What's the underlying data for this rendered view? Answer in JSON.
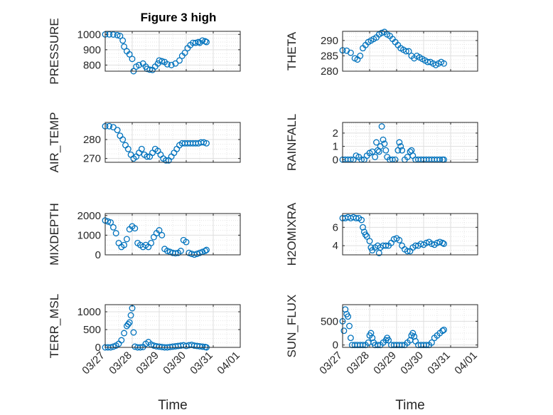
{
  "colors": {
    "marker": "#0072BD",
    "axis": "#262626",
    "grid": "#DFDFDF"
  },
  "chart_data": [
    {
      "type": "scatter",
      "title": "Figure 3 high",
      "ylabel": "PRESSURE",
      "ylim": [
        760,
        1020
      ],
      "yticks": [
        800,
        900,
        1000
      ],
      "grid": true,
      "points": [
        [
          0,
          1000
        ],
        [
          0.15,
          1000
        ],
        [
          0.3,
          999
        ],
        [
          0.45,
          995
        ],
        [
          0.55,
          990
        ],
        [
          0.65,
          960
        ],
        [
          0.7,
          920
        ],
        [
          0.8,
          890
        ],
        [
          0.9,
          870
        ],
        [
          1.0,
          840
        ],
        [
          1.05,
          760
        ],
        [
          1.15,
          790
        ],
        [
          1.25,
          800
        ],
        [
          1.4,
          810
        ],
        [
          1.5,
          790
        ],
        [
          1.55,
          775
        ],
        [
          1.65,
          770
        ],
        [
          1.75,
          768
        ],
        [
          1.85,
          790
        ],
        [
          1.95,
          810
        ],
        [
          2.0,
          830
        ],
        [
          2.1,
          825
        ],
        [
          2.2,
          820
        ],
        [
          2.3,
          805
        ],
        [
          2.45,
          800
        ],
        [
          2.6,
          810
        ],
        [
          2.75,
          830
        ],
        [
          2.85,
          860
        ],
        [
          2.95,
          880
        ],
        [
          3.05,
          910
        ],
        [
          3.15,
          930
        ],
        [
          3.25,
          945
        ],
        [
          3.35,
          945
        ],
        [
          3.45,
          950
        ],
        [
          3.5,
          945
        ],
        [
          3.6,
          960
        ],
        [
          3.7,
          955
        ],
        [
          3.75,
          950
        ]
      ]
    },
    {
      "type": "scatter",
      "ylabel": "THETA",
      "ylim": [
        280,
        293
      ],
      "yticks": [
        280,
        285,
        290
      ],
      "grid": true,
      "points": [
        [
          0,
          286.8
        ],
        [
          0.15,
          286.7
        ],
        [
          0.3,
          286
        ],
        [
          0.45,
          284.2
        ],
        [
          0.55,
          283.8
        ],
        [
          0.65,
          285
        ],
        [
          0.75,
          287.5
        ],
        [
          0.85,
          288.5
        ],
        [
          0.95,
          289.5
        ],
        [
          1.05,
          290
        ],
        [
          1.15,
          290.5
        ],
        [
          1.25,
          291
        ],
        [
          1.35,
          292
        ],
        [
          1.45,
          292.5
        ],
        [
          1.55,
          292.8
        ],
        [
          1.65,
          292
        ],
        [
          1.75,
          291.5
        ],
        [
          1.85,
          290.5
        ],
        [
          1.95,
          289.5
        ],
        [
          2.05,
          288.5
        ],
        [
          2.15,
          287.5
        ],
        [
          2.25,
          287
        ],
        [
          2.35,
          286.5
        ],
        [
          2.45,
          286.5
        ],
        [
          2.55,
          285
        ],
        [
          2.65,
          284.2
        ],
        [
          2.75,
          285
        ],
        [
          2.85,
          284.5
        ],
        [
          2.95,
          284
        ],
        [
          3.05,
          283.5
        ],
        [
          3.15,
          283
        ],
        [
          3.25,
          283
        ],
        [
          3.35,
          282.5
        ],
        [
          3.45,
          282
        ],
        [
          3.55,
          282.5
        ],
        [
          3.65,
          283
        ],
        [
          3.75,
          282.5
        ]
      ]
    },
    {
      "type": "scatter",
      "ylabel": "AIR_TEMP",
      "ylim": [
        268,
        289
      ],
      "yticks": [
        270,
        280
      ],
      "grid": true,
      "points": [
        [
          0,
          287
        ],
        [
          0.15,
          287
        ],
        [
          0.3,
          286.5
        ],
        [
          0.45,
          285
        ],
        [
          0.55,
          282
        ],
        [
          0.65,
          280
        ],
        [
          0.75,
          277
        ],
        [
          0.85,
          275
        ],
        [
          0.95,
          272
        ],
        [
          1.05,
          270
        ],
        [
          1.15,
          271
        ],
        [
          1.25,
          273
        ],
        [
          1.35,
          275
        ],
        [
          1.45,
          272
        ],
        [
          1.55,
          271
        ],
        [
          1.65,
          271
        ],
        [
          1.75,
          273
        ],
        [
          1.85,
          275
        ],
        [
          1.95,
          274
        ],
        [
          2.05,
          272
        ],
        [
          2.15,
          270
        ],
        [
          2.25,
          269
        ],
        [
          2.35,
          269
        ],
        [
          2.45,
          271
        ],
        [
          2.55,
          273
        ],
        [
          2.65,
          275
        ],
        [
          2.75,
          277
        ],
        [
          2.85,
          278
        ],
        [
          2.95,
          278
        ],
        [
          3.05,
          278
        ],
        [
          3.15,
          278
        ],
        [
          3.25,
          278
        ],
        [
          3.35,
          278
        ],
        [
          3.45,
          278
        ],
        [
          3.55,
          278.5
        ],
        [
          3.65,
          278.5
        ],
        [
          3.75,
          278
        ]
      ]
    },
    {
      "type": "scatter",
      "ylabel": "RAINFALL",
      "ylim": [
        -0.2,
        2.8
      ],
      "yticks": [
        0,
        1,
        2
      ],
      "grid": true,
      "points": [
        [
          0,
          0
        ],
        [
          0.1,
          0
        ],
        [
          0.2,
          0
        ],
        [
          0.3,
          0
        ],
        [
          0.4,
          0
        ],
        [
          0.5,
          0.3
        ],
        [
          0.6,
          0.2
        ],
        [
          0.7,
          0
        ],
        [
          0.8,
          0
        ],
        [
          0.9,
          0.3
        ],
        [
          1.0,
          0.5
        ],
        [
          1.1,
          0.6
        ],
        [
          1.2,
          0.2
        ],
        [
          1.25,
          1.3
        ],
        [
          1.3,
          0.7
        ],
        [
          1.35,
          0.6
        ],
        [
          1.4,
          1
        ],
        [
          1.45,
          2.5
        ],
        [
          1.5,
          1.5
        ],
        [
          1.55,
          1.2
        ],
        [
          1.6,
          0.7
        ],
        [
          1.65,
          0.2
        ],
        [
          1.75,
          0
        ],
        [
          1.85,
          0
        ],
        [
          1.95,
          0
        ],
        [
          2.05,
          0.7
        ],
        [
          2.1,
          1.3
        ],
        [
          2.15,
          1
        ],
        [
          2.2,
          0.7
        ],
        [
          2.3,
          0
        ],
        [
          2.4,
          0.2
        ],
        [
          2.5,
          0.6
        ],
        [
          2.55,
          0.7
        ],
        [
          2.6,
          0.3
        ],
        [
          2.7,
          0
        ],
        [
          2.8,
          0
        ],
        [
          2.9,
          0
        ],
        [
          3.0,
          0
        ],
        [
          3.1,
          0
        ],
        [
          3.2,
          0
        ],
        [
          3.3,
          0
        ],
        [
          3.4,
          0
        ],
        [
          3.5,
          0
        ],
        [
          3.6,
          0
        ],
        [
          3.7,
          0
        ],
        [
          3.75,
          0
        ]
      ]
    },
    {
      "type": "scatter",
      "ylabel": "MIXDEPTH",
      "ylim": [
        0,
        2100
      ],
      "yticks": [
        0,
        1000,
        2000
      ],
      "grid": true,
      "points": [
        [
          0,
          1750
        ],
        [
          0.1,
          1700
        ],
        [
          0.2,
          1650
        ],
        [
          0.3,
          1400
        ],
        [
          0.4,
          1100
        ],
        [
          0.5,
          600
        ],
        [
          0.6,
          400
        ],
        [
          0.7,
          500
        ],
        [
          0.8,
          800
        ],
        [
          0.9,
          1300
        ],
        [
          1.0,
          1450
        ],
        [
          1.1,
          1350
        ],
        [
          1.2,
          600
        ],
        [
          1.3,
          500
        ],
        [
          1.4,
          400
        ],
        [
          1.5,
          500
        ],
        [
          1.6,
          400
        ],
        [
          1.7,
          600
        ],
        [
          1.8,
          900
        ],
        [
          1.9,
          1100
        ],
        [
          2.0,
          1250
        ],
        [
          2.1,
          1000
        ],
        [
          2.2,
          300
        ],
        [
          2.3,
          200
        ],
        [
          2.4,
          150
        ],
        [
          2.5,
          100
        ],
        [
          2.6,
          80
        ],
        [
          2.7,
          100
        ],
        [
          2.8,
          200
        ],
        [
          2.9,
          750
        ],
        [
          3.0,
          650
        ],
        [
          3.1,
          100
        ],
        [
          3.2,
          50
        ],
        [
          3.3,
          10
        ],
        [
          3.4,
          50
        ],
        [
          3.5,
          100
        ],
        [
          3.6,
          150
        ],
        [
          3.7,
          200
        ],
        [
          3.75,
          250
        ]
      ]
    },
    {
      "type": "scatter",
      "ylabel": "H2OMIXRA",
      "ylim": [
        3,
        7.5
      ],
      "yticks": [
        4,
        6
      ],
      "grid": true,
      "points": [
        [
          0,
          7
        ],
        [
          0.1,
          7
        ],
        [
          0.2,
          7.1
        ],
        [
          0.3,
          7
        ],
        [
          0.4,
          7.1
        ],
        [
          0.5,
          7
        ],
        [
          0.6,
          7
        ],
        [
          0.7,
          6.8
        ],
        [
          0.75,
          6
        ],
        [
          0.8,
          5.5
        ],
        [
          0.85,
          5.2
        ],
        [
          0.9,
          5
        ],
        [
          1.0,
          4.5
        ],
        [
          1.05,
          3.8
        ],
        [
          1.1,
          3.5
        ],
        [
          1.2,
          3.8
        ],
        [
          1.3,
          4
        ],
        [
          1.35,
          3.2
        ],
        [
          1.4,
          3.8
        ],
        [
          1.5,
          4
        ],
        [
          1.6,
          4
        ],
        [
          1.7,
          4
        ],
        [
          1.8,
          4.3
        ],
        [
          1.9,
          4.7
        ],
        [
          2.0,
          4.8
        ],
        [
          2.1,
          4.6
        ],
        [
          2.2,
          4
        ],
        [
          2.3,
          3.6
        ],
        [
          2.4,
          3.4
        ],
        [
          2.5,
          3.4
        ],
        [
          2.6,
          3.8
        ],
        [
          2.7,
          4
        ],
        [
          2.8,
          4
        ],
        [
          2.9,
          4.2
        ],
        [
          3.0,
          4.1
        ],
        [
          3.1,
          4.3
        ],
        [
          3.2,
          4.4
        ],
        [
          3.3,
          4.2
        ],
        [
          3.4,
          4.1
        ],
        [
          3.5,
          4.3
        ],
        [
          3.6,
          4.4
        ],
        [
          3.7,
          4.3
        ],
        [
          3.75,
          4.2
        ]
      ]
    },
    {
      "type": "scatter",
      "ylabel": "TERR_MSL",
      "xlabel": "Time",
      "ylim": [
        0,
        1200
      ],
      "yticks": [
        0,
        500,
        1000
      ],
      "xticks": [
        "03/27",
        "03/28",
        "03/29",
        "03/30",
        "03/31",
        "04/01"
      ],
      "grid": true,
      "points": [
        [
          0,
          0
        ],
        [
          0.1,
          0
        ],
        [
          0.2,
          0
        ],
        [
          0.3,
          20
        ],
        [
          0.4,
          50
        ],
        [
          0.5,
          100
        ],
        [
          0.6,
          200
        ],
        [
          0.7,
          400
        ],
        [
          0.8,
          600
        ],
        [
          0.85,
          650
        ],
        [
          0.9,
          700
        ],
        [
          0.95,
          900
        ],
        [
          1.0,
          1100
        ],
        [
          1.05,
          420
        ],
        [
          1.1,
          20
        ],
        [
          1.2,
          0
        ],
        [
          1.3,
          0
        ],
        [
          1.4,
          10
        ],
        [
          1.5,
          100
        ],
        [
          1.6,
          150
        ],
        [
          1.7,
          80
        ],
        [
          1.8,
          50
        ],
        [
          1.9,
          30
        ],
        [
          2.0,
          20
        ],
        [
          2.1,
          10
        ],
        [
          2.2,
          0
        ],
        [
          2.3,
          0
        ],
        [
          2.4,
          10
        ],
        [
          2.5,
          20
        ],
        [
          2.6,
          30
        ],
        [
          2.7,
          40
        ],
        [
          2.8,
          50
        ],
        [
          2.9,
          60
        ],
        [
          3.0,
          40
        ],
        [
          3.1,
          60
        ],
        [
          3.2,
          70
        ],
        [
          3.3,
          50
        ],
        [
          3.4,
          40
        ],
        [
          3.5,
          30
        ],
        [
          3.6,
          20
        ],
        [
          3.7,
          10
        ],
        [
          3.75,
          0
        ]
      ]
    },
    {
      "type": "scatter",
      "ylabel": "SUN_FLUX",
      "xlabel": "Time",
      "ylim": [
        -50,
        850
      ],
      "yticks": [
        0,
        500
      ],
      "xticks": [
        "03/27",
        "03/28",
        "03/29",
        "03/30",
        "03/31",
        "04/01"
      ],
      "grid": true,
      "points": [
        [
          0,
          500
        ],
        [
          0.05,
          300
        ],
        [
          0.1,
          750
        ],
        [
          0.15,
          650
        ],
        [
          0.2,
          600
        ],
        [
          0.25,
          400
        ],
        [
          0.3,
          150
        ],
        [
          0.35,
          0
        ],
        [
          0.45,
          0
        ],
        [
          0.55,
          0
        ],
        [
          0.65,
          0
        ],
        [
          0.75,
          0
        ],
        [
          0.85,
          0
        ],
        [
          0.95,
          50
        ],
        [
          1.0,
          200
        ],
        [
          1.05,
          250
        ],
        [
          1.1,
          150
        ],
        [
          1.15,
          50
        ],
        [
          1.2,
          0
        ],
        [
          1.3,
          0
        ],
        [
          1.4,
          0
        ],
        [
          1.5,
          50
        ],
        [
          1.6,
          100
        ],
        [
          1.65,
          150
        ],
        [
          1.7,
          100
        ],
        [
          1.8,
          0
        ],
        [
          1.9,
          0
        ],
        [
          2.0,
          0
        ],
        [
          2.1,
          0
        ],
        [
          2.2,
          0
        ],
        [
          2.3,
          0
        ],
        [
          2.4,
          50
        ],
        [
          2.5,
          100
        ],
        [
          2.55,
          200
        ],
        [
          2.6,
          250
        ],
        [
          2.65,
          180
        ],
        [
          2.7,
          80
        ],
        [
          2.8,
          0
        ],
        [
          2.9,
          0
        ],
        [
          3.0,
          0
        ],
        [
          3.1,
          0
        ],
        [
          3.2,
          0
        ],
        [
          3.3,
          50
        ],
        [
          3.4,
          150
        ],
        [
          3.5,
          200
        ],
        [
          3.6,
          250
        ],
        [
          3.7,
          300
        ],
        [
          3.75,
          320
        ]
      ]
    }
  ]
}
